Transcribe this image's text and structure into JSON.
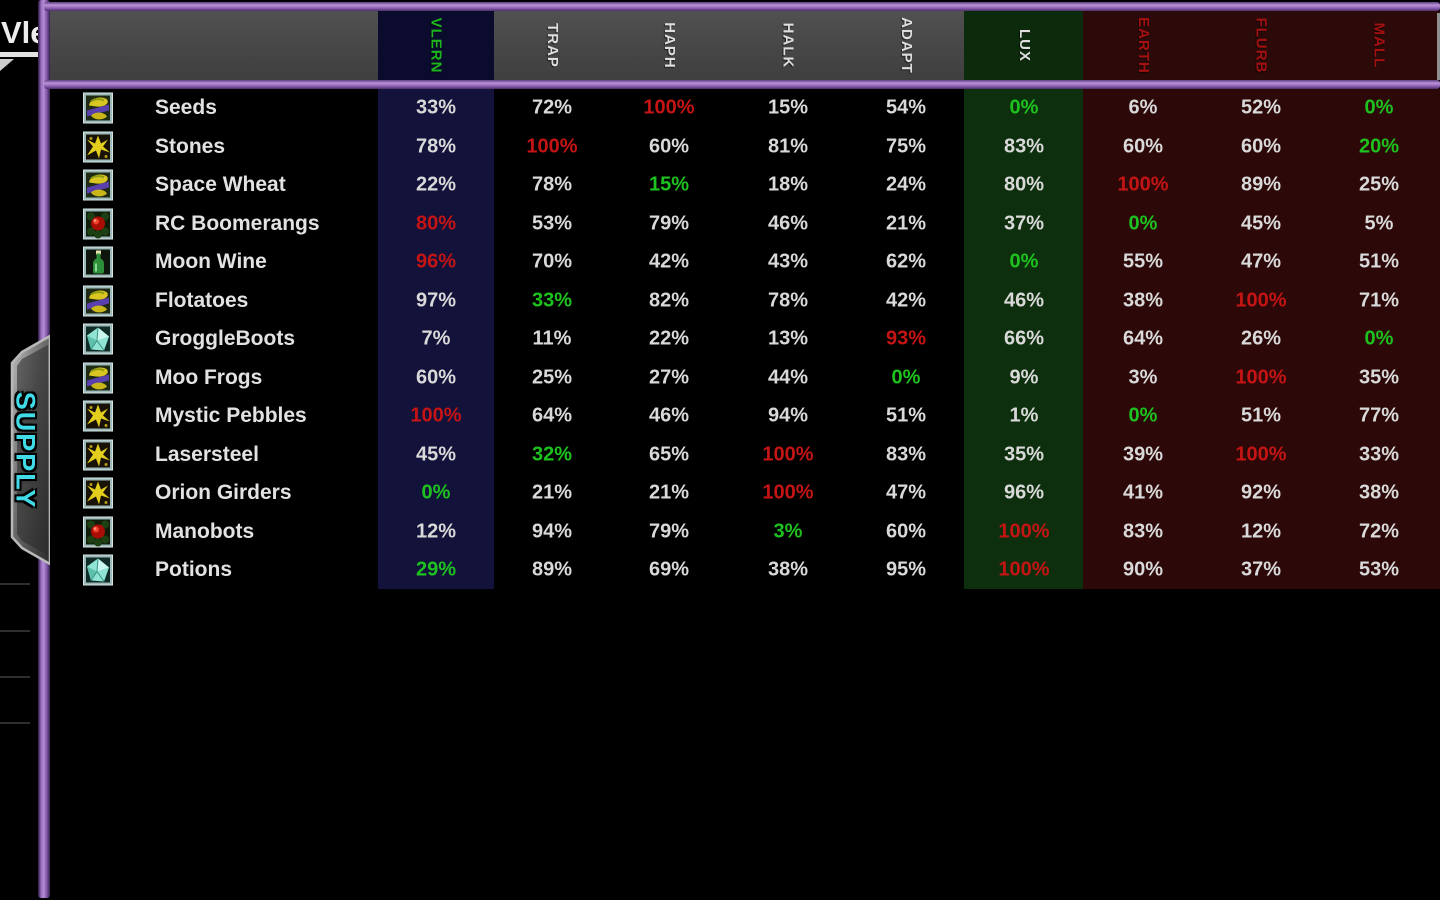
{
  "top_left": {
    "clipped_text": "Vle"
  },
  "side_tab": {
    "label": "SUPPLY"
  },
  "table": {
    "columns": [
      {
        "label": "VLERN",
        "band": "navy",
        "text_color": "#1db41d"
      },
      {
        "label": "TRAP",
        "band": "none",
        "text_color": "#dedede"
      },
      {
        "label": "HAPH",
        "band": "none",
        "text_color": "#dedede"
      },
      {
        "label": "HALK",
        "band": "none",
        "text_color": "#dedede"
      },
      {
        "label": "ADAPT",
        "band": "none",
        "text_color": "#dedede"
      },
      {
        "label": "LUX",
        "band": "green",
        "text_color": "#dedede"
      },
      {
        "label": "EARTH",
        "band": "red",
        "text_color": "#a31010"
      },
      {
        "label": "FLURB",
        "band": "red",
        "text_color": "#a31010"
      },
      {
        "label": "MALL",
        "band": "red",
        "text_color": "#a31010"
      }
    ],
    "rows": [
      {
        "name": "Seeds",
        "icon": "plant-icon",
        "cells": [
          {
            "text": "33%",
            "state": "normal"
          },
          {
            "text": "72%",
            "state": "normal"
          },
          {
            "text": "100%",
            "state": "max"
          },
          {
            "text": "15%",
            "state": "normal"
          },
          {
            "text": "54%",
            "state": "normal"
          },
          {
            "text": "0%",
            "state": "min"
          },
          {
            "text": "6%",
            "state": "normal"
          },
          {
            "text": "52%",
            "state": "normal"
          },
          {
            "text": "0%",
            "state": "min"
          }
        ]
      },
      {
        "name": "Stones",
        "icon": "ore-icon",
        "cells": [
          {
            "text": "78%",
            "state": "normal"
          },
          {
            "text": "100%",
            "state": "max"
          },
          {
            "text": "60%",
            "state": "normal"
          },
          {
            "text": "81%",
            "state": "normal"
          },
          {
            "text": "75%",
            "state": "normal"
          },
          {
            "text": "83%",
            "state": "normal"
          },
          {
            "text": "60%",
            "state": "normal"
          },
          {
            "text": "60%",
            "state": "normal"
          },
          {
            "text": "20%",
            "state": "min"
          }
        ]
      },
      {
        "name": "Space Wheat",
        "icon": "plant-icon",
        "cells": [
          {
            "text": "22%",
            "state": "normal"
          },
          {
            "text": "78%",
            "state": "normal"
          },
          {
            "text": "15%",
            "state": "min"
          },
          {
            "text": "18%",
            "state": "normal"
          },
          {
            "text": "24%",
            "state": "normal"
          },
          {
            "text": "80%",
            "state": "normal"
          },
          {
            "text": "100%",
            "state": "max"
          },
          {
            "text": "89%",
            "state": "normal"
          },
          {
            "text": "25%",
            "state": "normal"
          }
        ]
      },
      {
        "name": "RC Boomerangs",
        "icon": "sphere-icon",
        "cells": [
          {
            "text": "80%",
            "state": "max"
          },
          {
            "text": "53%",
            "state": "normal"
          },
          {
            "text": "79%",
            "state": "normal"
          },
          {
            "text": "46%",
            "state": "normal"
          },
          {
            "text": "21%",
            "state": "normal"
          },
          {
            "text": "37%",
            "state": "normal"
          },
          {
            "text": "0%",
            "state": "min"
          },
          {
            "text": "45%",
            "state": "normal"
          },
          {
            "text": "5%",
            "state": "normal"
          }
        ]
      },
      {
        "name": "Moon Wine",
        "icon": "bottle-icon",
        "cells": [
          {
            "text": "96%",
            "state": "max"
          },
          {
            "text": "70%",
            "state": "normal"
          },
          {
            "text": "42%",
            "state": "normal"
          },
          {
            "text": "43%",
            "state": "normal"
          },
          {
            "text": "62%",
            "state": "normal"
          },
          {
            "text": "0%",
            "state": "min"
          },
          {
            "text": "55%",
            "state": "normal"
          },
          {
            "text": "47%",
            "state": "normal"
          },
          {
            "text": "51%",
            "state": "normal"
          }
        ]
      },
      {
        "name": "Flotatoes",
        "icon": "plant-icon",
        "cells": [
          {
            "text": "97%",
            "state": "normal"
          },
          {
            "text": "33%",
            "state": "min"
          },
          {
            "text": "82%",
            "state": "normal"
          },
          {
            "text": "78%",
            "state": "normal"
          },
          {
            "text": "42%",
            "state": "normal"
          },
          {
            "text": "46%",
            "state": "normal"
          },
          {
            "text": "38%",
            "state": "normal"
          },
          {
            "text": "100%",
            "state": "max"
          },
          {
            "text": "71%",
            "state": "normal"
          }
        ]
      },
      {
        "name": "GroggleBoots",
        "icon": "gem-icon",
        "cells": [
          {
            "text": "7%",
            "state": "normal"
          },
          {
            "text": "11%",
            "state": "normal"
          },
          {
            "text": "22%",
            "state": "normal"
          },
          {
            "text": "13%",
            "state": "normal"
          },
          {
            "text": "93%",
            "state": "max"
          },
          {
            "text": "66%",
            "state": "normal"
          },
          {
            "text": "64%",
            "state": "normal"
          },
          {
            "text": "26%",
            "state": "normal"
          },
          {
            "text": "0%",
            "state": "min"
          }
        ]
      },
      {
        "name": "Moo Frogs",
        "icon": "plant-icon",
        "cells": [
          {
            "text": "60%",
            "state": "normal"
          },
          {
            "text": "25%",
            "state": "normal"
          },
          {
            "text": "27%",
            "state": "normal"
          },
          {
            "text": "44%",
            "state": "normal"
          },
          {
            "text": "0%",
            "state": "min"
          },
          {
            "text": "9%",
            "state": "normal"
          },
          {
            "text": "3%",
            "state": "normal"
          },
          {
            "text": "100%",
            "state": "max"
          },
          {
            "text": "35%",
            "state": "normal"
          }
        ]
      },
      {
        "name": "Mystic Pebbles",
        "icon": "ore-icon",
        "cells": [
          {
            "text": "100%",
            "state": "max"
          },
          {
            "text": "64%",
            "state": "normal"
          },
          {
            "text": "46%",
            "state": "normal"
          },
          {
            "text": "94%",
            "state": "normal"
          },
          {
            "text": "51%",
            "state": "normal"
          },
          {
            "text": "1%",
            "state": "normal"
          },
          {
            "text": "0%",
            "state": "min"
          },
          {
            "text": "51%",
            "state": "normal"
          },
          {
            "text": "77%",
            "state": "normal"
          }
        ]
      },
      {
        "name": "Lasersteel",
        "icon": "ore-icon",
        "cells": [
          {
            "text": "45%",
            "state": "normal"
          },
          {
            "text": "32%",
            "state": "min"
          },
          {
            "text": "65%",
            "state": "normal"
          },
          {
            "text": "100%",
            "state": "max"
          },
          {
            "text": "83%",
            "state": "normal"
          },
          {
            "text": "35%",
            "state": "normal"
          },
          {
            "text": "39%",
            "state": "normal"
          },
          {
            "text": "100%",
            "state": "max"
          },
          {
            "text": "33%",
            "state": "normal"
          }
        ]
      },
      {
        "name": "Orion Girders",
        "icon": "ore-icon",
        "cells": [
          {
            "text": "0%",
            "state": "min"
          },
          {
            "text": "21%",
            "state": "normal"
          },
          {
            "text": "21%",
            "state": "normal"
          },
          {
            "text": "100%",
            "state": "max"
          },
          {
            "text": "47%",
            "state": "normal"
          },
          {
            "text": "96%",
            "state": "normal"
          },
          {
            "text": "41%",
            "state": "normal"
          },
          {
            "text": "92%",
            "state": "normal"
          },
          {
            "text": "38%",
            "state": "normal"
          }
        ]
      },
      {
        "name": "Manobots",
        "icon": "sphere-icon",
        "cells": [
          {
            "text": "12%",
            "state": "normal"
          },
          {
            "text": "94%",
            "state": "normal"
          },
          {
            "text": "79%",
            "state": "normal"
          },
          {
            "text": "3%",
            "state": "min"
          },
          {
            "text": "60%",
            "state": "normal"
          },
          {
            "text": "100%",
            "state": "max"
          },
          {
            "text": "83%",
            "state": "normal"
          },
          {
            "text": "12%",
            "state": "normal"
          },
          {
            "text": "72%",
            "state": "normal"
          }
        ]
      },
      {
        "name": "Potions",
        "icon": "gem-icon",
        "cells": [
          {
            "text": "29%",
            "state": "min"
          },
          {
            "text": "89%",
            "state": "normal"
          },
          {
            "text": "69%",
            "state": "normal"
          },
          {
            "text": "38%",
            "state": "normal"
          },
          {
            "text": "95%",
            "state": "normal"
          },
          {
            "text": "100%",
            "state": "max"
          },
          {
            "text": "90%",
            "state": "normal"
          },
          {
            "text": "37%",
            "state": "normal"
          },
          {
            "text": "53%",
            "state": "normal"
          }
        ]
      }
    ]
  },
  "colors": {
    "accent_purple": "#9a6fc0",
    "header_gray": "#484848",
    "hdr_navy": "#0b0b2e",
    "hdr_green": "#0c2a0c",
    "hdr_red": "#2d0a0a",
    "band_navy": "#12123a",
    "band_green": "#0d2f0d",
    "band_red": "#2c0808",
    "val_n": "#d9d9d9",
    "val_max": "#c41414",
    "val_min": "#1ec21e",
    "tab_cyan": "#41dbe8"
  }
}
